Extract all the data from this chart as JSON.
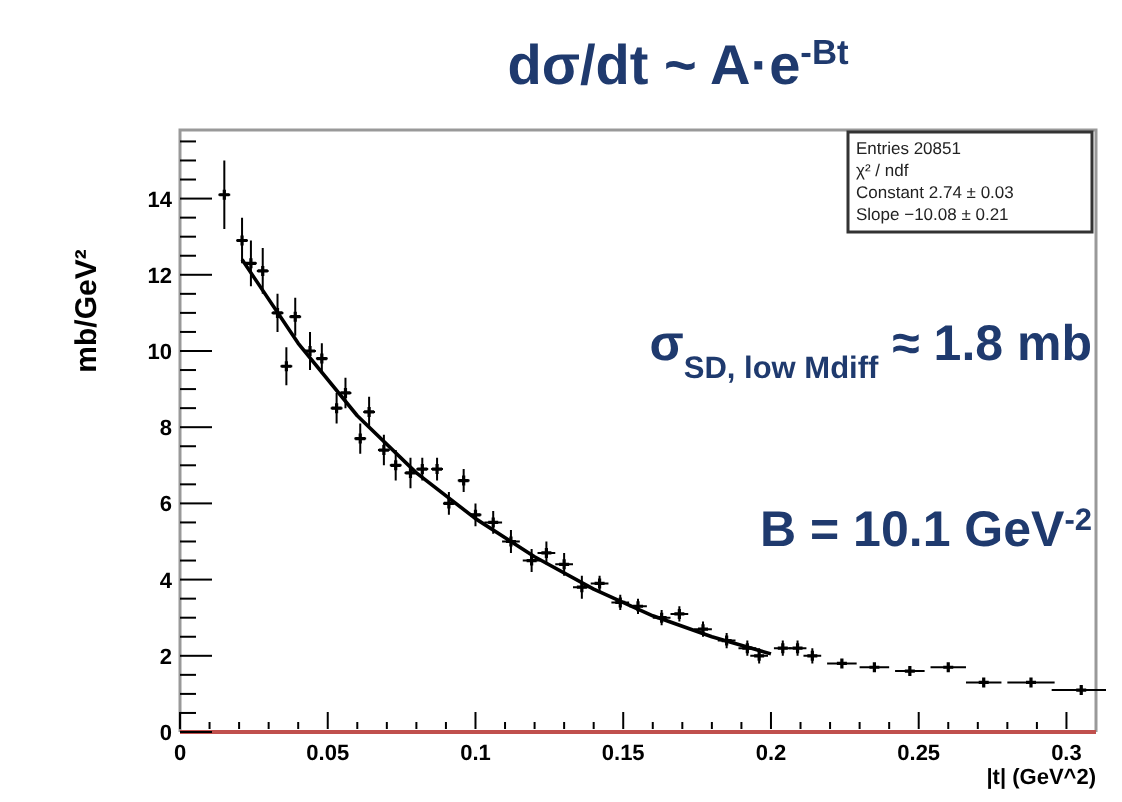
{
  "chart_data": {
    "type": "scatter",
    "title": "dσ/dt ~ A·e$^{-Bt}$",
    "xlabel": "|t| (GeV^2)",
    "ylabel": "mb/GeV²",
    "xlim": [
      0,
      0.31
    ],
    "ylim": [
      0,
      15.8
    ],
    "xticks": [
      0,
      {
        "value": 0.01,
        "label": null
      },
      {
        "value": 0.02,
        "label": null
      },
      {
        "value": 0.03,
        "label": null
      },
      {
        "value": 0.04,
        "label": null
      },
      0.05,
      {
        "value": 0.06,
        "label": null
      },
      {
        "value": 0.07,
        "label": null
      },
      {
        "value": 0.08,
        "label": null
      },
      {
        "value": 0.09,
        "label": null
      },
      0.1,
      {
        "value": 0.11,
        "label": null
      },
      {
        "value": 0.12,
        "label": null
      },
      {
        "value": 0.13,
        "label": null
      },
      {
        "value": 0.14,
        "label": null
      },
      0.15,
      {
        "value": 0.16,
        "label": null
      },
      {
        "value": 0.17,
        "label": null
      },
      {
        "value": 0.18,
        "label": null
      },
      {
        "value": 0.19,
        "label": null
      },
      0.2,
      {
        "value": 0.21,
        "label": null
      },
      {
        "value": 0.22,
        "label": null
      },
      {
        "value": 0.23,
        "label": null
      },
      {
        "value": 0.24,
        "label": null
      },
      0.25,
      {
        "value": 0.26,
        "label": null
      },
      {
        "value": 0.27,
        "label": null
      },
      {
        "value": 0.28,
        "label": null
      },
      {
        "value": 0.29,
        "label": null
      },
      0.3
    ],
    "yticks": [
      0,
      {
        "value": 0.5,
        "label": null
      },
      {
        "value": 1,
        "label": null
      },
      {
        "value": 1.5,
        "label": null
      },
      2,
      {
        "value": 2.5,
        "label": null
      },
      {
        "value": 3,
        "label": null
      },
      {
        "value": 3.5,
        "label": null
      },
      4,
      {
        "value": 4.5,
        "label": null
      },
      {
        "value": 5,
        "label": null
      },
      {
        "value": 5.5,
        "label": null
      },
      6,
      {
        "value": 6.5,
        "label": null
      },
      {
        "value": 7,
        "label": null
      },
      {
        "value": 7.5,
        "label": null
      },
      8,
      {
        "value": 8.5,
        "label": null
      },
      {
        "value": 9,
        "label": null
      },
      {
        "value": 9.5,
        "label": null
      },
      10,
      {
        "value": 10.5,
        "label": null
      },
      {
        "value": 11,
        "label": null
      },
      {
        "value": 11.5,
        "label": null
      },
      12,
      {
        "value": 12.5,
        "label": null
      },
      {
        "value": 13,
        "label": null
      },
      {
        "value": 13.5,
        "label": null
      },
      14,
      {
        "value": 14.5,
        "label": null
      },
      {
        "value": 15,
        "label": null
      },
      {
        "value": 15.5,
        "label": null
      }
    ],
    "grid": false,
    "series": [
      {
        "color": "#000000",
        "marker": "cross",
        "x": [
          0.015,
          0.021,
          0.024,
          0.028,
          0.033,
          0.036,
          0.039,
          0.044,
          0.048,
          0.053,
          0.056,
          0.061,
          0.064,
          0.069,
          0.073,
          0.078,
          0.082,
          0.087,
          0.091,
          0.096,
          0.1,
          0.106,
          0.112,
          0.119,
          0.124,
          0.13,
          0.136,
          0.142,
          0.149,
          0.155,
          0.163,
          0.169,
          0.177,
          0.185,
          0.192,
          0.196,
          0.204,
          0.209,
          0.214,
          0.224,
          0.235,
          0.247,
          0.26,
          0.272,
          0.288,
          0.305
        ],
        "values": [
          14.1,
          12.9,
          12.3,
          12.1,
          11.0,
          9.6,
          10.9,
          10.0,
          9.8,
          8.5,
          8.9,
          7.7,
          8.4,
          7.4,
          7.0,
          6.8,
          6.9,
          6.9,
          6.0,
          6.6,
          5.7,
          5.5,
          5.0,
          4.5,
          4.7,
          4.4,
          3.8,
          3.9,
          3.4,
          3.3,
          3.0,
          3.1,
          2.7,
          2.4,
          2.2,
          2.0,
          2.2,
          2.2,
          2.0,
          1.8,
          1.7,
          1.6,
          1.7,
          1.3,
          1.3,
          1.1
        ],
        "errors": [
          0.9,
          0.6,
          0.6,
          0.6,
          0.5,
          0.5,
          0.5,
          0.5,
          0.4,
          0.4,
          0.4,
          0.4,
          0.4,
          0.4,
          0.4,
          0.4,
          0.3,
          0.3,
          0.3,
          0.3,
          0.3,
          0.3,
          0.3,
          0.3,
          0.3,
          0.3,
          0.3,
          0.2,
          0.2,
          0.2,
          0.2,
          0.2,
          0.2,
          0.2,
          0.2,
          0.2,
          0.2,
          0.2,
          0.2,
          0.1,
          0.1,
          0.1,
          0.1,
          0.1,
          0.1,
          0.1
        ],
        "xerrors": [
          0.002,
          0.002,
          0.002,
          0.002,
          0.002,
          0.002,
          0.002,
          0.002,
          0.002,
          0.002,
          0.002,
          0.002,
          0.002,
          0.002,
          0.002,
          0.002,
          0.002,
          0.002,
          0.002,
          0.002,
          0.002,
          0.003,
          0.003,
          0.003,
          0.003,
          0.003,
          0.003,
          0.003,
          0.003,
          0.003,
          0.003,
          0.003,
          0.003,
          0.003,
          0.003,
          0.003,
          0.003,
          0.003,
          0.003,
          0.005,
          0.005,
          0.005,
          0.006,
          0.006,
          0.008,
          0.01
        ]
      },
      {
        "type": "line",
        "color": "#000000",
        "x": [
          0.021,
          0.04,
          0.06,
          0.08,
          0.1,
          0.12,
          0.14,
          0.16,
          0.18,
          0.2
        ],
        "values": [
          12.4,
          10.2,
          8.3,
          6.8,
          5.6,
          4.6,
          3.75,
          3.05,
          2.5,
          2.05
        ]
      }
    ],
    "annotations": [
      "σ$_{SD, low Mdiff}$ ≈ 1.8 mb",
      "B = 10.1 GeV$^{-2}$",
      "Entries 20851",
      "χ² / ndf",
      "Constant 2.74 ± 0.03",
      "Slope −10.08 ± 0.21"
    ]
  }
}
